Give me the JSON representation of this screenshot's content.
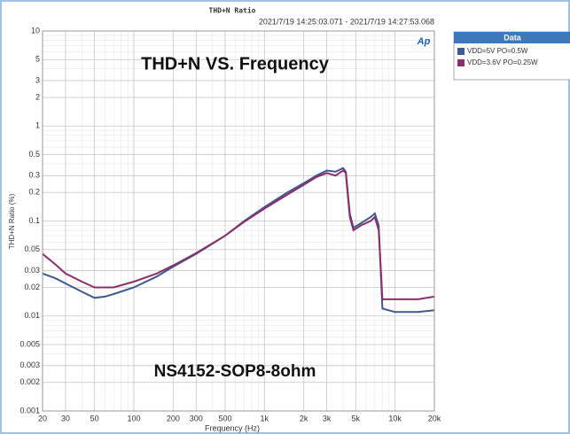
{
  "chart_data": {
    "type": "line",
    "title": "THD+N Ratio",
    "subtitle": "2021/7/19 14:25:03.071 - 2021/7/19 14:27:53.068",
    "annotations": [
      "THD+N VS. Frequency",
      "NS4152-SOP8-8ohm"
    ],
    "logo": "Ap",
    "x_label": "Frequency (Hz)",
    "y_label": "THD+N Ratio (%)",
    "legend_title": "Data",
    "legend": "right",
    "x_log": true,
    "y_log": true,
    "grid": true,
    "xlim": [
      20,
      20000
    ],
    "ylim": [
      0.001,
      10
    ],
    "xticks": [
      20,
      30,
      50,
      100,
      200,
      300,
      500,
      {
        "value": 1000,
        "label": "1k"
      },
      {
        "value": 2000,
        "label": "2k"
      },
      {
        "value": 3000,
        "label": "3k"
      },
      {
        "value": 5000,
        "label": "5k"
      },
      {
        "value": 10000,
        "label": "10k"
      },
      {
        "value": 20000,
        "label": "20k"
      }
    ],
    "yticks": [
      10,
      5,
      3,
      2,
      1,
      0.5,
      0.3,
      0.2,
      0.1,
      0.05,
      0.03,
      0.02,
      0.01,
      0.005,
      0.003,
      0.002,
      0.001
    ],
    "x": [
      20,
      25,
      30,
      40,
      50,
      60,
      70,
      100,
      150,
      200,
      300,
      500,
      700,
      1000,
      1500,
      2000,
      2500,
      3000,
      3500,
      4000,
      4200,
      4500,
      4800,
      5500,
      6500,
      7000,
      7500,
      8000,
      10000,
      15000,
      20000
    ],
    "series": [
      {
        "name": "VDD=5V PO=0.5W",
        "color": "#3f5a8c",
        "values": [
          0.028,
          0.025,
          0.022,
          0.018,
          0.0155,
          0.016,
          0.017,
          0.02,
          0.026,
          0.033,
          0.045,
          0.07,
          0.1,
          0.14,
          0.2,
          0.25,
          0.3,
          0.34,
          0.33,
          0.36,
          0.33,
          0.12,
          0.085,
          0.095,
          0.11,
          0.12,
          0.09,
          0.012,
          0.011,
          0.011,
          0.0115
        ]
      },
      {
        "name": "VDD=3.6V PO=0.25W",
        "color": "#8b2f6b",
        "values": [
          0.045,
          0.035,
          0.028,
          0.023,
          0.02,
          0.02,
          0.02,
          0.023,
          0.028,
          0.034,
          0.046,
          0.07,
          0.098,
          0.135,
          0.19,
          0.24,
          0.29,
          0.32,
          0.3,
          0.34,
          0.32,
          0.11,
          0.08,
          0.09,
          0.1,
          0.11,
          0.08,
          0.015,
          0.015,
          0.015,
          0.016
        ]
      }
    ]
  }
}
